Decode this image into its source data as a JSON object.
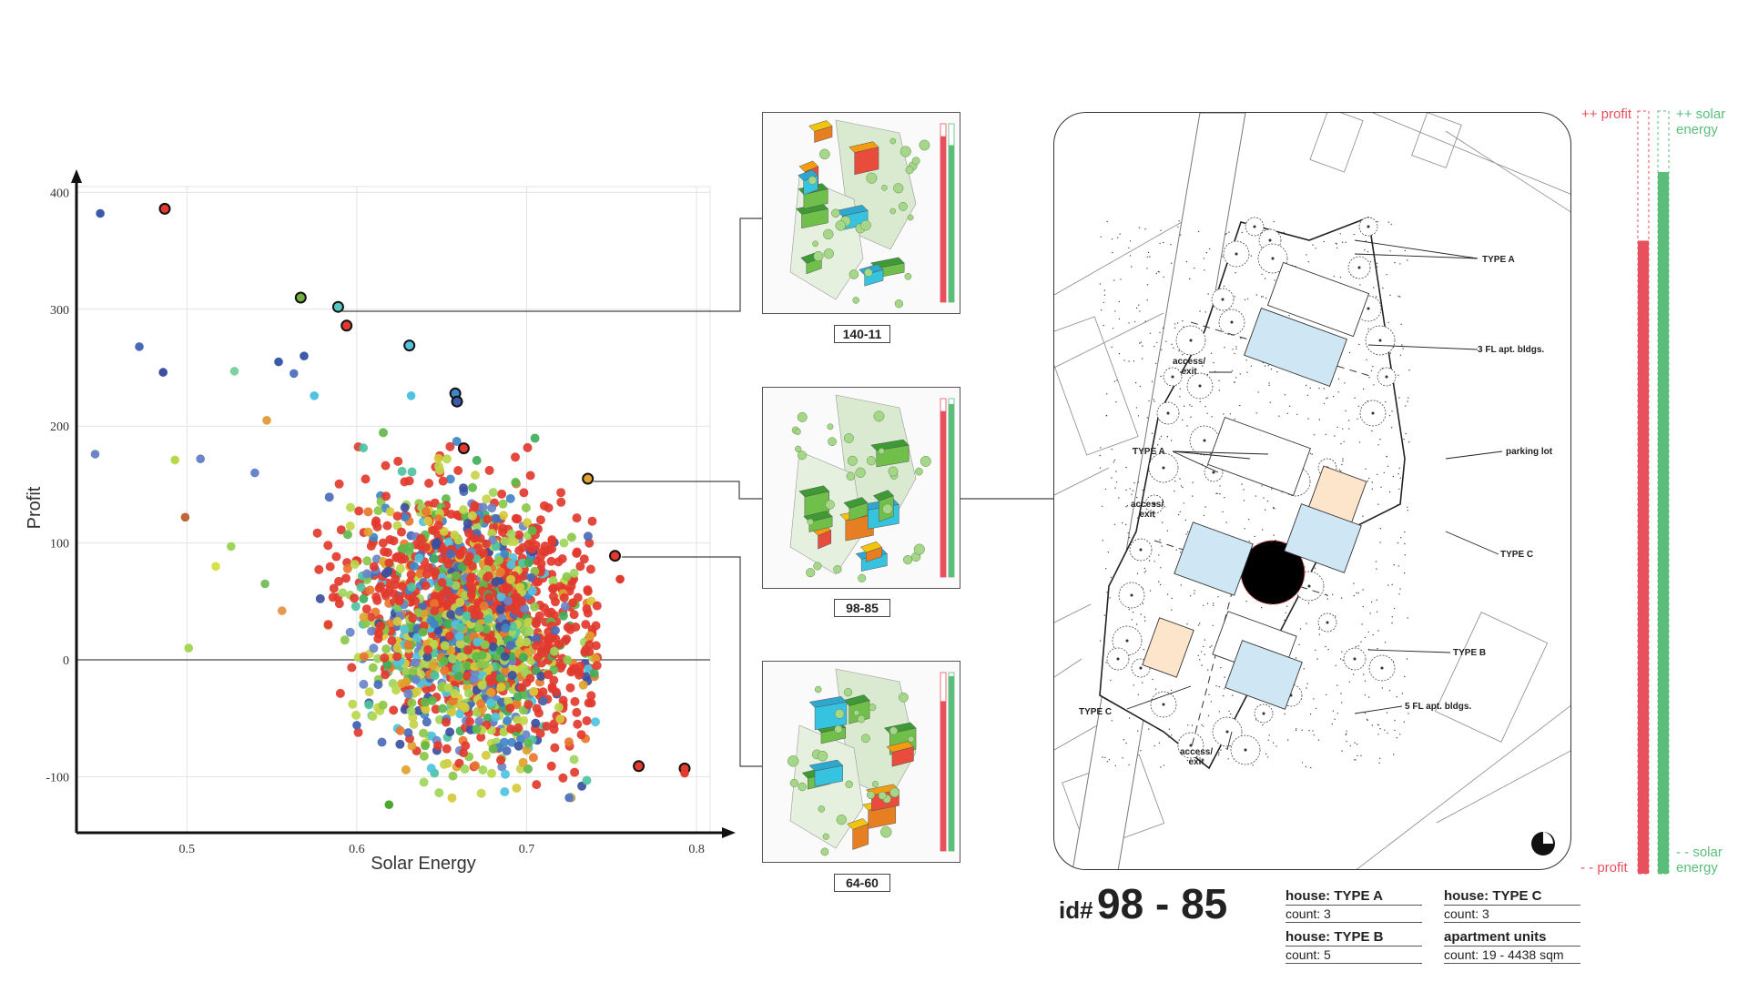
{
  "chart_data": {
    "type": "scatter",
    "xlabel": "Solar Energy",
    "ylabel": "Profit",
    "xlim": [
      0.435,
      0.808
    ],
    "ylim": [
      -148,
      405
    ],
    "xticks": [
      "0.5",
      "0.6",
      "0.7",
      "0.8"
    ],
    "yticks": [
      "400",
      "300",
      "200",
      "100",
      "0",
      "-100"
    ],
    "grid": true,
    "series": [
      {
        "values_note": "",
        "points": [
          {
            "x": 0.449,
            "y": 382,
            "c": "#3b5ba8"
          },
          {
            "x": 0.487,
            "y": 386,
            "c": "#e23a2e",
            "h": true
          },
          {
            "x": 0.472,
            "y": 268,
            "c": "#4a6ab5"
          },
          {
            "x": 0.486,
            "y": 246,
            "c": "#3b4f9e"
          },
          {
            "x": 0.567,
            "y": 310,
            "c": "#6fae3f",
            "h": true
          },
          {
            "x": 0.589,
            "y": 302,
            "c": "#55c7c0",
            "h": true
          },
          {
            "x": 0.594,
            "y": 286,
            "c": "#e23a2e",
            "h": true
          },
          {
            "x": 0.631,
            "y": 269,
            "c": "#4fc3e0",
            "h": true
          },
          {
            "x": 0.658,
            "y": 228,
            "c": "#3f86c8",
            "h": true
          },
          {
            "x": 0.659,
            "y": 221,
            "c": "#3b5ba8",
            "h": true
          },
          {
            "x": 0.663,
            "y": 181,
            "c": "#e23a2e",
            "h": true
          },
          {
            "x": 0.736,
            "y": 155,
            "c": "#e0a22c",
            "h": true
          },
          {
            "x": 0.752,
            "y": 89,
            "c": "#e23a2e",
            "h": true
          },
          {
            "x": 0.755,
            "y": 69,
            "c": "#e23a2e"
          },
          {
            "x": 0.766,
            "y": -91,
            "c": "#e23a2e",
            "h": true
          },
          {
            "x": 0.793,
            "y": -93,
            "c": "#e23a2e",
            "h": true
          },
          {
            "x": 0.793,
            "y": -97,
            "c": "#e23a2e"
          },
          {
            "x": 0.446,
            "y": 176,
            "c": "#6a85c8"
          },
          {
            "x": 0.493,
            "y": 171,
            "c": "#b8d84a"
          },
          {
            "x": 0.499,
            "y": 122,
            "c": "#c0643a"
          },
          {
            "x": 0.501,
            "y": 10,
            "c": "#a6d55a"
          },
          {
            "x": 0.508,
            "y": 172,
            "c": "#6a85c8"
          },
          {
            "x": 0.528,
            "y": 247,
            "c": "#7fd0a0"
          },
          {
            "x": 0.517,
            "y": 80,
            "c": "#d8e04a"
          },
          {
            "x": 0.526,
            "y": 97,
            "c": "#9ed65a"
          },
          {
            "x": 0.554,
            "y": 255,
            "c": "#3b5ba8"
          },
          {
            "x": 0.569,
            "y": 260,
            "c": "#3b5ba8"
          },
          {
            "x": 0.563,
            "y": 245,
            "c": "#5a78c0"
          },
          {
            "x": 0.575,
            "y": 226,
            "c": "#4fc3e0"
          },
          {
            "x": 0.547,
            "y": 205,
            "c": "#e2a040"
          },
          {
            "x": 0.54,
            "y": 160,
            "c": "#6a85c8"
          },
          {
            "x": 0.546,
            "y": 65,
            "c": "#7ac060"
          },
          {
            "x": 0.556,
            "y": 42,
            "c": "#e59a50"
          },
          {
            "x": 0.619,
            "y": -124,
            "c": "#4aa82e"
          },
          {
            "x": 0.725,
            "y": -118,
            "c": "#5a78c0"
          },
          {
            "x": 0.632,
            "y": 226,
            "c": "#4fc3e0"
          },
          {
            "x": 0.6,
            "y": -56,
            "c": "#4a6ab5"
          }
        ]
      }
    ]
  },
  "thumbnails": [
    {
      "label": "140-11",
      "profit": 0.93,
      "solar": 0.88
    },
    {
      "label": "98-85",
      "profit": 0.93,
      "solar": 0.97
    },
    {
      "label": "64-60",
      "profit": 0.84,
      "solar": 0.98
    }
  ],
  "plan": {
    "labels": {
      "type_a_top": "TYPE A",
      "apt_3fl": "3 FL apt. bldgs.",
      "access_exit_1": "access/\nexit",
      "parking_lot": "parking lot",
      "type_a_left": "TYPE A",
      "access_exit_2": "access/\nexit",
      "type_c_right": "TYPE C",
      "type_b": "TYPE B",
      "apt_5fl": "5 FL apt. bldgs.",
      "type_c_left": "TYPE C",
      "access_exit_3": "access/\nexit"
    }
  },
  "selected": {
    "prefix": "id#",
    "value": "98 - 85"
  },
  "info": [
    {
      "title": "house: TYPE A",
      "count": "count: 3"
    },
    {
      "title": "house: TYPE C",
      "count": "count: 3"
    },
    {
      "title": "house: TYPE B",
      "count": "count: 5"
    },
    {
      "title": "apartment units",
      "count": "count: 19 - 4438 sqm"
    }
  ],
  "bars": {
    "profit_high": "++ profit",
    "profit_low": "- - profit",
    "solar_high": "++ solar\nenergy",
    "solar_low": "- - solar\nenergy",
    "profit_value": 0.83,
    "solar_value": 0.92,
    "profit_color": "#e8505e",
    "solar_color": "#5bbd7a"
  }
}
